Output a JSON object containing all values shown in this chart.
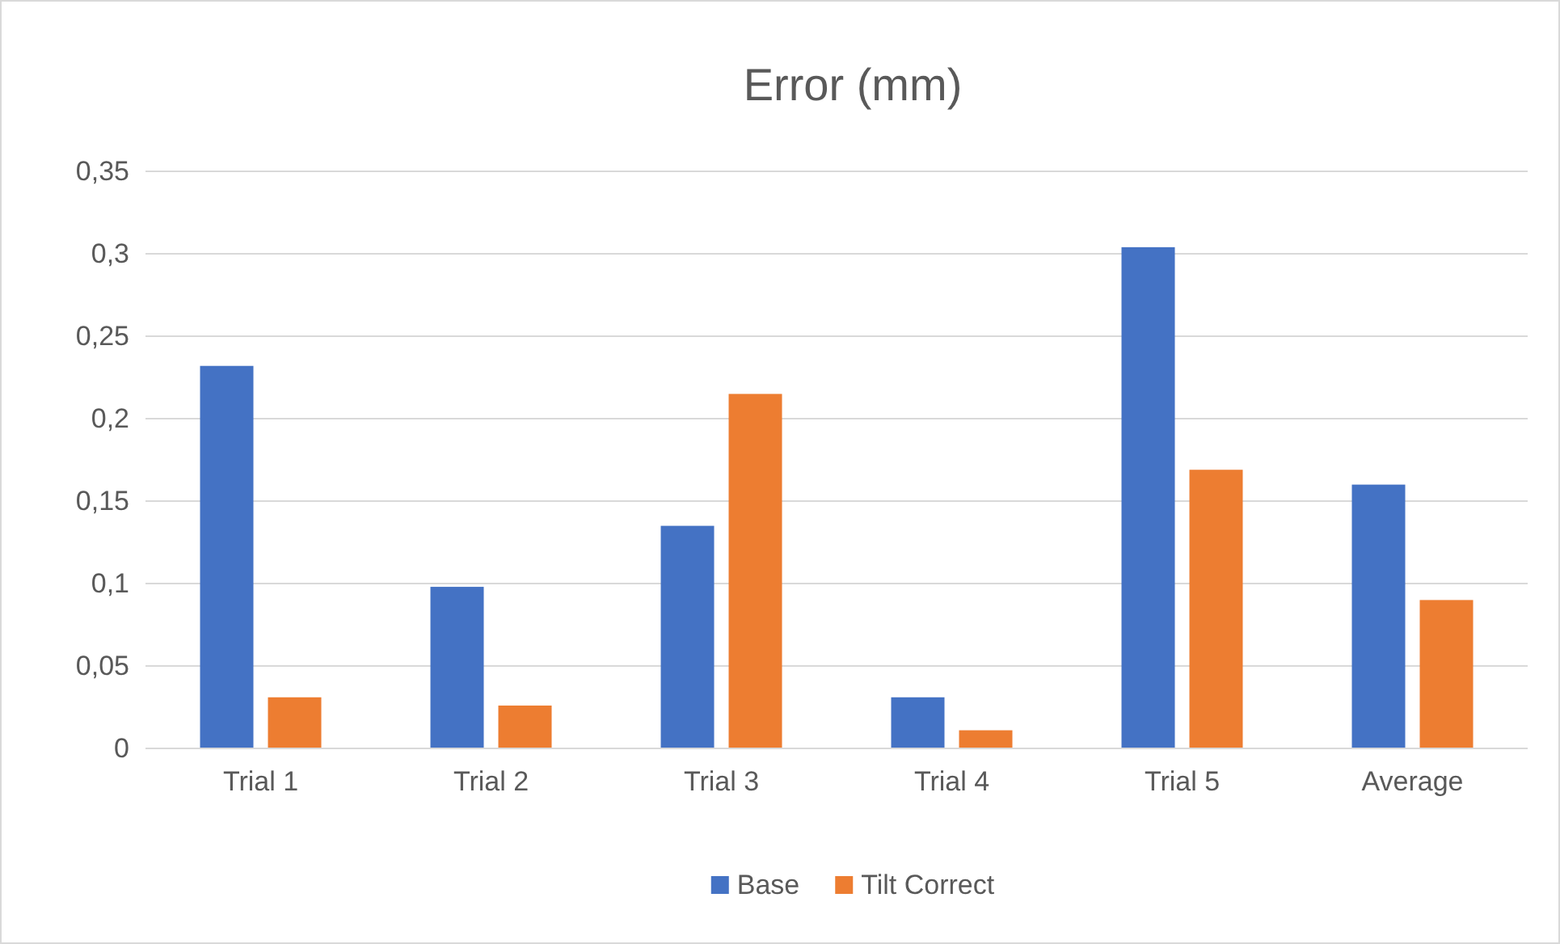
{
  "chart_data": {
    "type": "bar",
    "title": "Error (mm)",
    "categories": [
      "Trial 1",
      "Trial 2",
      "Trial 3",
      "Trial 4",
      "Trial 5",
      "Average"
    ],
    "series": [
      {
        "name": "Base",
        "color": "#4472c4",
        "values": [
          0.232,
          0.098,
          0.135,
          0.031,
          0.304,
          0.16
        ]
      },
      {
        "name": "Tilt Correct",
        "color": "#ed7d31",
        "values": [
          0.031,
          0.026,
          0.215,
          0.011,
          0.169,
          0.09
        ]
      }
    ],
    "ylim": [
      0,
      0.35
    ],
    "yticks": [
      0,
      {
        "value": 0.05,
        "label": "0,05"
      },
      {
        "value": 0.1,
        "label": "0,1"
      },
      {
        "value": 0.15,
        "label": "0,15"
      },
      {
        "value": 0.2,
        "label": "0,2"
      },
      {
        "value": 0.25,
        "label": "0,25"
      },
      {
        "value": 0.3,
        "label": "0,3"
      },
      {
        "value": 0.35,
        "label": "0,35"
      }
    ],
    "grid": "y",
    "legend": "bottom"
  }
}
